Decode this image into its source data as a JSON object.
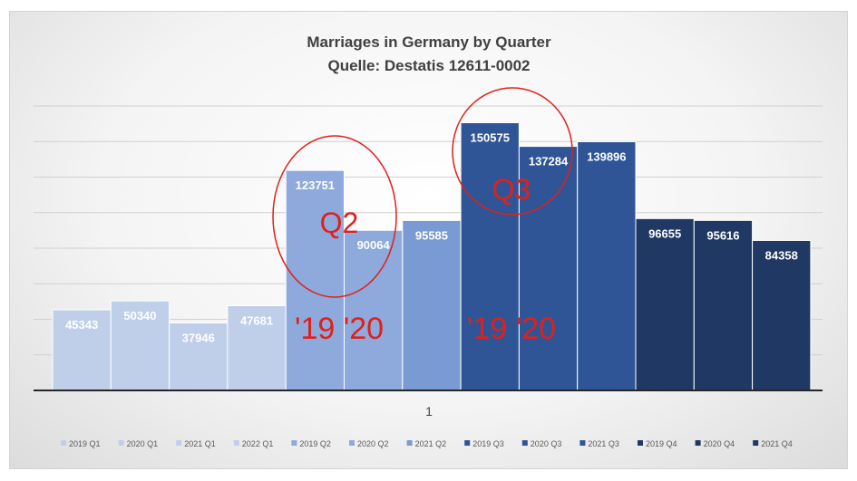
{
  "chart_data": {
    "type": "bar",
    "title": "Marriages in Germany by Quarter",
    "subtitle": "Quelle: Destatis 12611-0002",
    "categories": [
      "1"
    ],
    "series": [
      {
        "name": "2019 Q1",
        "values": [
          45343
        ],
        "color": "#bfcfea"
      },
      {
        "name": "2020 Q1",
        "values": [
          50340
        ],
        "color": "#bfcfea"
      },
      {
        "name": "2021 Q1",
        "values": [
          37946
        ],
        "color": "#bfcfea"
      },
      {
        "name": "2022 Q1",
        "values": [
          47681
        ],
        "color": "#bfcfea"
      },
      {
        "name": "2019 Q2",
        "values": [
          123751
        ],
        "color": "#8ea9db"
      },
      {
        "name": "2020 Q2",
        "values": [
          90064
        ],
        "color": "#8ea9db"
      },
      {
        "name": "2021 Q2",
        "values": [
          95585
        ],
        "color": "#7a9ad3"
      },
      {
        "name": "2019 Q3",
        "values": [
          150575
        ],
        "color": "#2f5597"
      },
      {
        "name": "2020 Q3",
        "values": [
          137284
        ],
        "color": "#2f5597"
      },
      {
        "name": "2021 Q3",
        "values": [
          139896
        ],
        "color": "#2f5597"
      },
      {
        "name": "2019 Q4",
        "values": [
          96655
        ],
        "color": "#1f3864"
      },
      {
        "name": "2020 Q4",
        "values": [
          95616
        ],
        "color": "#1f3864"
      },
      {
        "name": "2021 Q4",
        "values": [
          84358
        ],
        "color": "#1f3864"
      }
    ],
    "ylim": [
      0,
      160000
    ],
    "grid": true,
    "legend_position": "bottom",
    "annotations": [
      {
        "text": "Q2",
        "color": "#e0201b"
      },
      {
        "text": "'19 '20",
        "color": "#e0201b"
      },
      {
        "text": "Q3",
        "color": "#e0201b"
      },
      {
        "text": "'19 '20",
        "color": "#e0201b"
      }
    ]
  }
}
